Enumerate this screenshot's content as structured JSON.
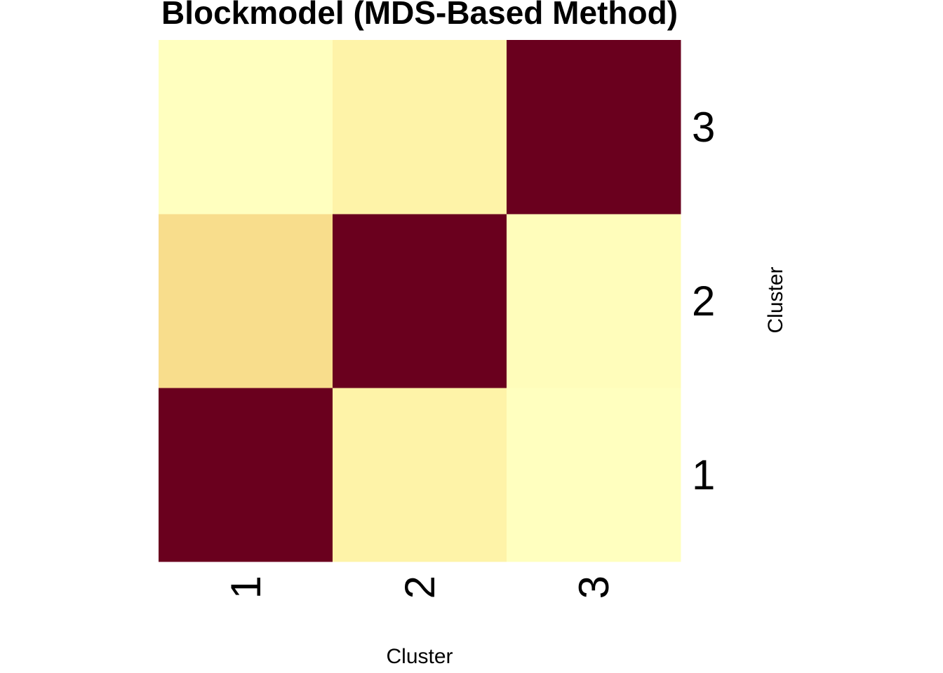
{
  "chart_data": {
    "type": "heatmap",
    "title": "Blockmodel (MDS-Based Method)",
    "xlabel": "Cluster",
    "ylabel": "Cluster",
    "x_categories": [
      "1",
      "2",
      "3"
    ],
    "y_categories": [
      "1",
      "2",
      "3"
    ],
    "y_order": "bottom-to-top",
    "values": [
      [
        1.0,
        0.06,
        0.0
      ],
      [
        0.15,
        1.0,
        0.01
      ],
      [
        0.0,
        0.06,
        1.0
      ]
    ],
    "value_range": [
      0,
      1
    ],
    "colorscale": [
      "#FFFFBF",
      "#FEF3A8",
      "#F8DD8C",
      "#6A001E"
    ],
    "colorscale_stops": [
      0,
      0.06,
      0.15,
      1
    ],
    "legend": "none",
    "grid": false
  }
}
